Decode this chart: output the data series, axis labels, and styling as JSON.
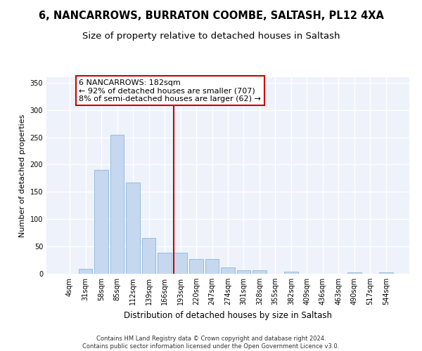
{
  "title1": "6, NANCARROWS, BURRATON COOMBE, SALTASH, PL12 4XA",
  "title2": "Size of property relative to detached houses in Saltash",
  "xlabel": "Distribution of detached houses by size in Saltash",
  "ylabel": "Number of detached properties",
  "bar_labels": [
    "4sqm",
    "31sqm",
    "58sqm",
    "85sqm",
    "112sqm",
    "139sqm",
    "166sqm",
    "193sqm",
    "220sqm",
    "247sqm",
    "274sqm",
    "301sqm",
    "328sqm",
    "355sqm",
    "382sqm",
    "409sqm",
    "436sqm",
    "463sqm",
    "490sqm",
    "517sqm",
    "544sqm"
  ],
  "bar_values": [
    0,
    9,
    190,
    255,
    167,
    66,
    38,
    38,
    27,
    27,
    11,
    6,
    6,
    0,
    4,
    0,
    0,
    0,
    2,
    0,
    2
  ],
  "bar_color": "#c5d8f0",
  "bar_edgecolor": "#7badd4",
  "vline_color": "#cc0000",
  "annotation_text": "6 NANCARROWS: 182sqm\n← 92% of detached houses are smaller (707)\n8% of semi-detached houses are larger (62) →",
  "annotation_box_facecolor": "white",
  "annotation_box_edgecolor": "#cc0000",
  "ylim": [
    0,
    360
  ],
  "yticks": [
    0,
    50,
    100,
    150,
    200,
    250,
    300,
    350
  ],
  "bg_color": "#eef2fa",
  "grid_color": "white",
  "footer": "Contains HM Land Registry data © Crown copyright and database right 2024.\nContains public sector information licensed under the Open Government Licence v3.0.",
  "title1_fontsize": 10.5,
  "title2_fontsize": 9.5,
  "xlabel_fontsize": 8.5,
  "ylabel_fontsize": 8,
  "tick_fontsize": 7,
  "annotation_fontsize": 8,
  "footer_fontsize": 6
}
